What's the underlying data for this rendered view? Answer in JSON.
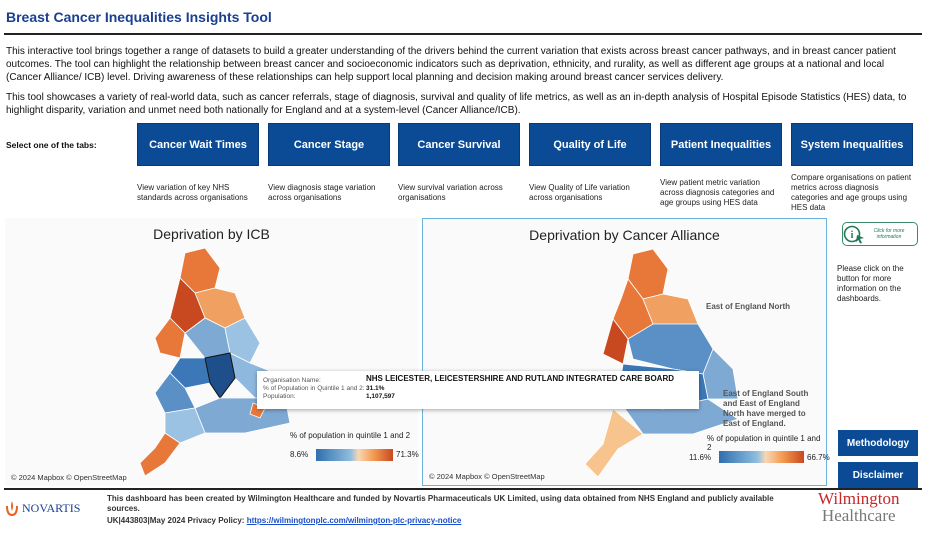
{
  "header": {
    "title": "Breast Cancer Inequalities Insights Tool"
  },
  "intro": {
    "p1": "This interactive tool brings together a range of datasets to build a greater understanding of the drivers behind the current variation that exists across breast cancer pathways, and in breast cancer patient outcomes. The tool can highlight the relationship between breast cancer and socioeconomic indicators such as deprivation, ethnicity, and rurality, as well as different age groups at a national and local (Cancer Alliance/ ICB) level. Driving awareness of these relationships can help support local planning and decision making around breast cancer services delivery.",
    "p2": "This tool showcases a variety of real-world data, such as cancer referrals, stage of diagnosis, survival and quality of life metrics, as well as an in-depth analysis of Hospital Episode Statistics (HES) data, to highlight disparity, variation and unmet need both nationally for England and at a system-level (Cancer Alliance/ICB)."
  },
  "tabs": {
    "select_label": "Select one of the tabs:",
    "items": [
      {
        "label": "Cancer Wait Times",
        "desc": "View variation of key NHS standards across organisations"
      },
      {
        "label": "Cancer Stage",
        "desc": "View diagnosis stage variation across organisations"
      },
      {
        "label": "Cancer Survival",
        "desc": "View survival variation across organisations"
      },
      {
        "label": "Quality of Life",
        "desc": "View Quality of Life variation across organisations"
      },
      {
        "label": "Patient Inequalities",
        "desc": "View patient metric variation across diagnosis categories and age groups using HES data"
      },
      {
        "label": "System Inequalities",
        "desc": "Compare organisations on patient metrics across diagnosis categories and age groups using HES data"
      }
    ]
  },
  "maps": {
    "left": {
      "title": "Deprivation by ICB",
      "credit": "© 2024 Mapbox © OpenStreetMap",
      "legend_title": "% of population in quintile 1 and 2",
      "legend_min": "8.6%",
      "legend_max": "71.3%"
    },
    "right": {
      "title": "Deprivation by Cancer Alliance",
      "credit": "© 2024 Mapbox © OpenStreetMap",
      "legend_title": "% of population in quintile 1 and 2",
      "legend_min": "11.6%",
      "legend_max": "66.7%",
      "annotation_north": "East of England North",
      "annotation_merge": "East of England South and East of England North have merged to East of England."
    }
  },
  "colors": {
    "low": "#2f6fad",
    "mid": "#f8d7b5",
    "high": "#c8491f",
    "brand": "#0b4a94"
  },
  "tooltip": {
    "org_label": "Organisation Name:",
    "org_value": "NHS LEICESTER, LEICESTERSHIRE AND RUTLAND INTEGRATED CARE BOARD",
    "pct_label": "% of Population in Quintile 1 and 2:",
    "pct_value": "31.1%",
    "pop_label": "Population:",
    "pop_value": "1,107,597"
  },
  "sidebar": {
    "info_button": "Click for more information",
    "info_text": "Please click on the button for more information on the dashboards.",
    "methodology": "Methodology",
    "disclaimer": "Disclaimer"
  },
  "footer": {
    "novartis": "NOVARTIS",
    "line1": "This dashboard has been created by Wilmington Healthcare and funded by Novartis Pharmaceuticals UK Limited, using data obtained from NHS England and publicly available sources.",
    "line2_prefix": "UK|443803|May 2024 Privacy Policy: ",
    "link": "https://wilmingtonplc.com/wilmington-plc-privacy-notice",
    "wilmington_1": "Wilmington",
    "wilmington_2": "Healthcare"
  }
}
